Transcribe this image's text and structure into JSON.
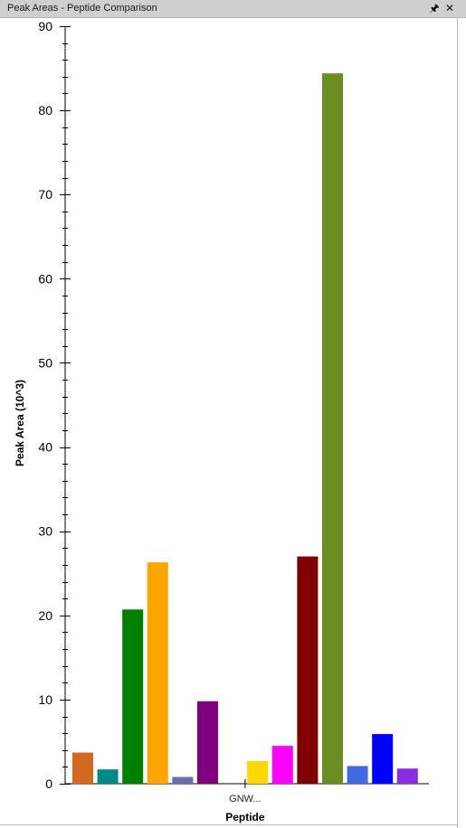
{
  "window": {
    "title": "Peak Areas - Peptide Comparison",
    "pin_icon": "pin-icon",
    "close_icon": "close-icon"
  },
  "chart_data": {
    "type": "bar",
    "categories": [
      "GNW..."
    ],
    "xlabel": "Peptide",
    "ylabel": "Peak Area (10^3)",
    "ylim": [
      0,
      90
    ],
    "yticks": [
      0,
      10,
      20,
      30,
      40,
      50,
      60,
      70,
      80,
      90
    ],
    "grid": false,
    "series": [
      {
        "values": [
          3.7
        ],
        "color": "#d2691e"
      },
      {
        "values": [
          1.7
        ],
        "color": "#008b8b"
      },
      {
        "values": [
          20.7
        ],
        "color": "#008000"
      },
      {
        "values": [
          26.3
        ],
        "color": "#ffa500"
      },
      {
        "values": [
          0.8
        ],
        "color": "#6b6bb3"
      },
      {
        "values": [
          9.8
        ],
        "color": "#800080"
      },
      {
        "values": [
          0.0
        ],
        "color": "#ffffff"
      },
      {
        "values": [
          2.7
        ],
        "color": "#ffd700"
      },
      {
        "values": [
          4.5
        ],
        "color": "#ff00ff"
      },
      {
        "values": [
          27.0
        ],
        "color": "#800000"
      },
      {
        "values": [
          84.4
        ],
        "color": "#6b8e23"
      },
      {
        "values": [
          2.1
        ],
        "color": "#4169e1"
      },
      {
        "values": [
          5.9
        ],
        "color": "#0000ff"
      },
      {
        "values": [
          1.8
        ],
        "color": "#8a2be2"
      }
    ]
  }
}
